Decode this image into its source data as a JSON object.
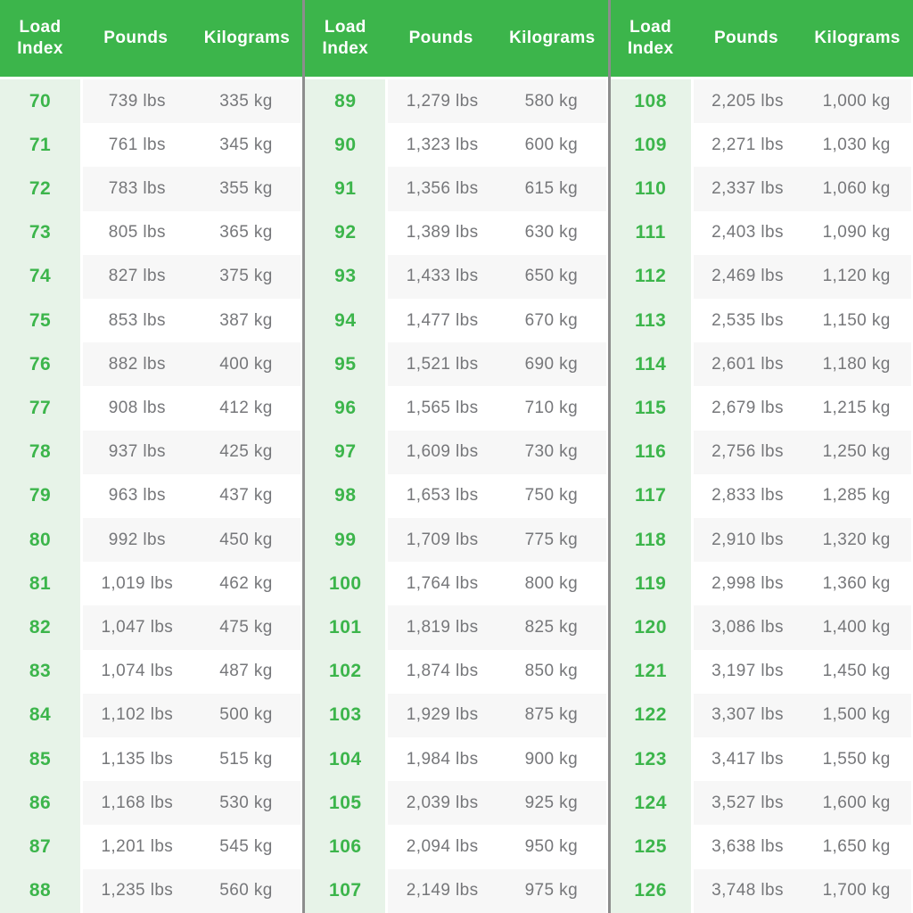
{
  "table": {
    "headers": [
      "Load Index",
      "Pounds",
      "Kilograms"
    ],
    "groups": [
      {
        "rows": [
          {
            "load_index": "70",
            "pounds": "739 lbs",
            "kilograms": "335 kg"
          },
          {
            "load_index": "71",
            "pounds": "761 lbs",
            "kilograms": "345 kg"
          },
          {
            "load_index": "72",
            "pounds": "783 lbs",
            "kilograms": "355 kg"
          },
          {
            "load_index": "73",
            "pounds": "805 lbs",
            "kilograms": "365 kg"
          },
          {
            "load_index": "74",
            "pounds": "827 lbs",
            "kilograms": "375 kg"
          },
          {
            "load_index": "75",
            "pounds": "853 lbs",
            "kilograms": "387 kg"
          },
          {
            "load_index": "76",
            "pounds": "882 lbs",
            "kilograms": "400 kg"
          },
          {
            "load_index": "77",
            "pounds": "908 lbs",
            "kilograms": "412 kg"
          },
          {
            "load_index": "78",
            "pounds": "937 lbs",
            "kilograms": "425 kg"
          },
          {
            "load_index": "79",
            "pounds": "963 lbs",
            "kilograms": "437 kg"
          },
          {
            "load_index": "80",
            "pounds": "992 lbs",
            "kilograms": "450 kg"
          },
          {
            "load_index": "81",
            "pounds": "1,019 lbs",
            "kilograms": "462 kg"
          },
          {
            "load_index": "82",
            "pounds": "1,047 lbs",
            "kilograms": "475 kg"
          },
          {
            "load_index": "83",
            "pounds": "1,074 lbs",
            "kilograms": "487 kg"
          },
          {
            "load_index": "84",
            "pounds": "1,102 lbs",
            "kilograms": "500 kg"
          },
          {
            "load_index": "85",
            "pounds": "1,135 lbs",
            "kilograms": "515 kg"
          },
          {
            "load_index": "86",
            "pounds": "1,168 lbs",
            "kilograms": "530 kg"
          },
          {
            "load_index": "87",
            "pounds": "1,201 lbs",
            "kilograms": "545 kg"
          },
          {
            "load_index": "88",
            "pounds": "1,235 lbs",
            "kilograms": "560 kg"
          }
        ]
      },
      {
        "rows": [
          {
            "load_index": "89",
            "pounds": "1,279 lbs",
            "kilograms": "580 kg"
          },
          {
            "load_index": "90",
            "pounds": "1,323 lbs",
            "kilograms": "600 kg"
          },
          {
            "load_index": "91",
            "pounds": "1,356 lbs",
            "kilograms": "615 kg"
          },
          {
            "load_index": "92",
            "pounds": "1,389 lbs",
            "kilograms": "630 kg"
          },
          {
            "load_index": "93",
            "pounds": "1,433 lbs",
            "kilograms": "650 kg"
          },
          {
            "load_index": "94",
            "pounds": "1,477 lbs",
            "kilograms": "670 kg"
          },
          {
            "load_index": "95",
            "pounds": "1,521 lbs",
            "kilograms": "690 kg"
          },
          {
            "load_index": "96",
            "pounds": "1,565 lbs",
            "kilograms": "710 kg"
          },
          {
            "load_index": "97",
            "pounds": "1,609 lbs",
            "kilograms": "730 kg"
          },
          {
            "load_index": "98",
            "pounds": "1,653 lbs",
            "kilograms": "750 kg"
          },
          {
            "load_index": "99",
            "pounds": "1,709 lbs",
            "kilograms": "775 kg"
          },
          {
            "load_index": "100",
            "pounds": "1,764 lbs",
            "kilograms": "800 kg"
          },
          {
            "load_index": "101",
            "pounds": "1,819 lbs",
            "kilograms": "825 kg"
          },
          {
            "load_index": "102",
            "pounds": "1,874 lbs",
            "kilograms": "850 kg"
          },
          {
            "load_index": "103",
            "pounds": "1,929 lbs",
            "kilograms": "875 kg"
          },
          {
            "load_index": "104",
            "pounds": "1,984 lbs",
            "kilograms": "900 kg"
          },
          {
            "load_index": "105",
            "pounds": "2,039 lbs",
            "kilograms": "925 kg"
          },
          {
            "load_index": "106",
            "pounds": "2,094 lbs",
            "kilograms": "950 kg"
          },
          {
            "load_index": "107",
            "pounds": "2,149 lbs",
            "kilograms": "975 kg"
          }
        ]
      },
      {
        "rows": [
          {
            "load_index": "108",
            "pounds": "2,205 lbs",
            "kilograms": "1,000 kg"
          },
          {
            "load_index": "109",
            "pounds": "2,271 lbs",
            "kilograms": "1,030 kg"
          },
          {
            "load_index": "110",
            "pounds": "2,337 lbs",
            "kilograms": "1,060 kg"
          },
          {
            "load_index": "111",
            "pounds": "2,403 lbs",
            "kilograms": "1,090 kg"
          },
          {
            "load_index": "112",
            "pounds": "2,469 lbs",
            "kilograms": "1,120 kg"
          },
          {
            "load_index": "113",
            "pounds": "2,535 lbs",
            "kilograms": "1,150 kg"
          },
          {
            "load_index": "114",
            "pounds": "2,601 lbs",
            "kilograms": "1,180 kg"
          },
          {
            "load_index": "115",
            "pounds": "2,679 lbs",
            "kilograms": "1,215 kg"
          },
          {
            "load_index": "116",
            "pounds": "2,756 lbs",
            "kilograms": "1,250 kg"
          },
          {
            "load_index": "117",
            "pounds": "2,833 lbs",
            "kilograms": "1,285 kg"
          },
          {
            "load_index": "118",
            "pounds": "2,910 lbs",
            "kilograms": "1,320 kg"
          },
          {
            "load_index": "119",
            "pounds": "2,998 lbs",
            "kilograms": "1,360 kg"
          },
          {
            "load_index": "120",
            "pounds": "3,086 lbs",
            "kilograms": "1,400 kg"
          },
          {
            "load_index": "121",
            "pounds": "3,197 lbs",
            "kilograms": "1,450 kg"
          },
          {
            "load_index": "122",
            "pounds": "3,307 lbs",
            "kilograms": "1,500 kg"
          },
          {
            "load_index": "123",
            "pounds": "3,417 lbs",
            "kilograms": "1,550 kg"
          },
          {
            "load_index": "124",
            "pounds": "3,527 lbs",
            "kilograms": "1,600 kg"
          },
          {
            "load_index": "125",
            "pounds": "3,638 lbs",
            "kilograms": "1,650 kg"
          },
          {
            "load_index": "126",
            "pounds": "3,748 lbs",
            "kilograms": "1,700 kg"
          }
        ]
      }
    ]
  },
  "chart_data": {
    "type": "table",
    "columns": [
      "Load Index",
      "Pounds",
      "Kilograms"
    ],
    "column_groups": 3,
    "rows_per_group": 19,
    "rows": [
      [
        70,
        739,
        335
      ],
      [
        71,
        761,
        345
      ],
      [
        72,
        783,
        355
      ],
      [
        73,
        805,
        365
      ],
      [
        74,
        827,
        375
      ],
      [
        75,
        853,
        387
      ],
      [
        76,
        882,
        400
      ],
      [
        77,
        908,
        412
      ],
      [
        78,
        937,
        425
      ],
      [
        79,
        963,
        437
      ],
      [
        80,
        992,
        450
      ],
      [
        81,
        1019,
        462
      ],
      [
        82,
        1047,
        475
      ],
      [
        83,
        1074,
        487
      ],
      [
        84,
        1102,
        500
      ],
      [
        85,
        1135,
        515
      ],
      [
        86,
        1168,
        530
      ],
      [
        87,
        1201,
        545
      ],
      [
        88,
        1235,
        560
      ],
      [
        89,
        1279,
        580
      ],
      [
        90,
        1323,
        600
      ],
      [
        91,
        1356,
        615
      ],
      [
        92,
        1389,
        630
      ],
      [
        93,
        1433,
        650
      ],
      [
        94,
        1477,
        670
      ],
      [
        95,
        1521,
        690
      ],
      [
        96,
        1565,
        710
      ],
      [
        97,
        1609,
        730
      ],
      [
        98,
        1653,
        750
      ],
      [
        99,
        1709,
        775
      ],
      [
        100,
        1764,
        800
      ],
      [
        101,
        1819,
        825
      ],
      [
        102,
        1874,
        850
      ],
      [
        103,
        1929,
        875
      ],
      [
        104,
        1984,
        900
      ],
      [
        105,
        2039,
        925
      ],
      [
        106,
        2094,
        950
      ],
      [
        107,
        2149,
        975
      ],
      [
        108,
        2205,
        1000
      ],
      [
        109,
        2271,
        1030
      ],
      [
        110,
        2337,
        1060
      ],
      [
        111,
        2403,
        1090
      ],
      [
        112,
        2469,
        1120
      ],
      [
        113,
        2535,
        1150
      ],
      [
        114,
        2601,
        1180
      ],
      [
        115,
        2679,
        1215
      ],
      [
        116,
        2756,
        1250
      ],
      [
        117,
        2833,
        1285
      ],
      [
        118,
        2910,
        1320
      ],
      [
        119,
        2998,
        1360
      ],
      [
        120,
        3086,
        1400
      ],
      [
        121,
        3197,
        1450
      ],
      [
        122,
        3307,
        1500
      ],
      [
        123,
        3417,
        1550
      ],
      [
        124,
        3527,
        1600
      ],
      [
        125,
        3638,
        1650
      ],
      [
        126,
        3748,
        1700
      ]
    ]
  },
  "colors": {
    "header_green": "#3cb54b",
    "load_index_text_green": "#3cb54b",
    "load_index_column_bg": "#e7f3e8",
    "row_stripe": "#f7f7f7",
    "value_text_gray": "#76777a",
    "group_divider_gray": "#8d8d8d"
  }
}
